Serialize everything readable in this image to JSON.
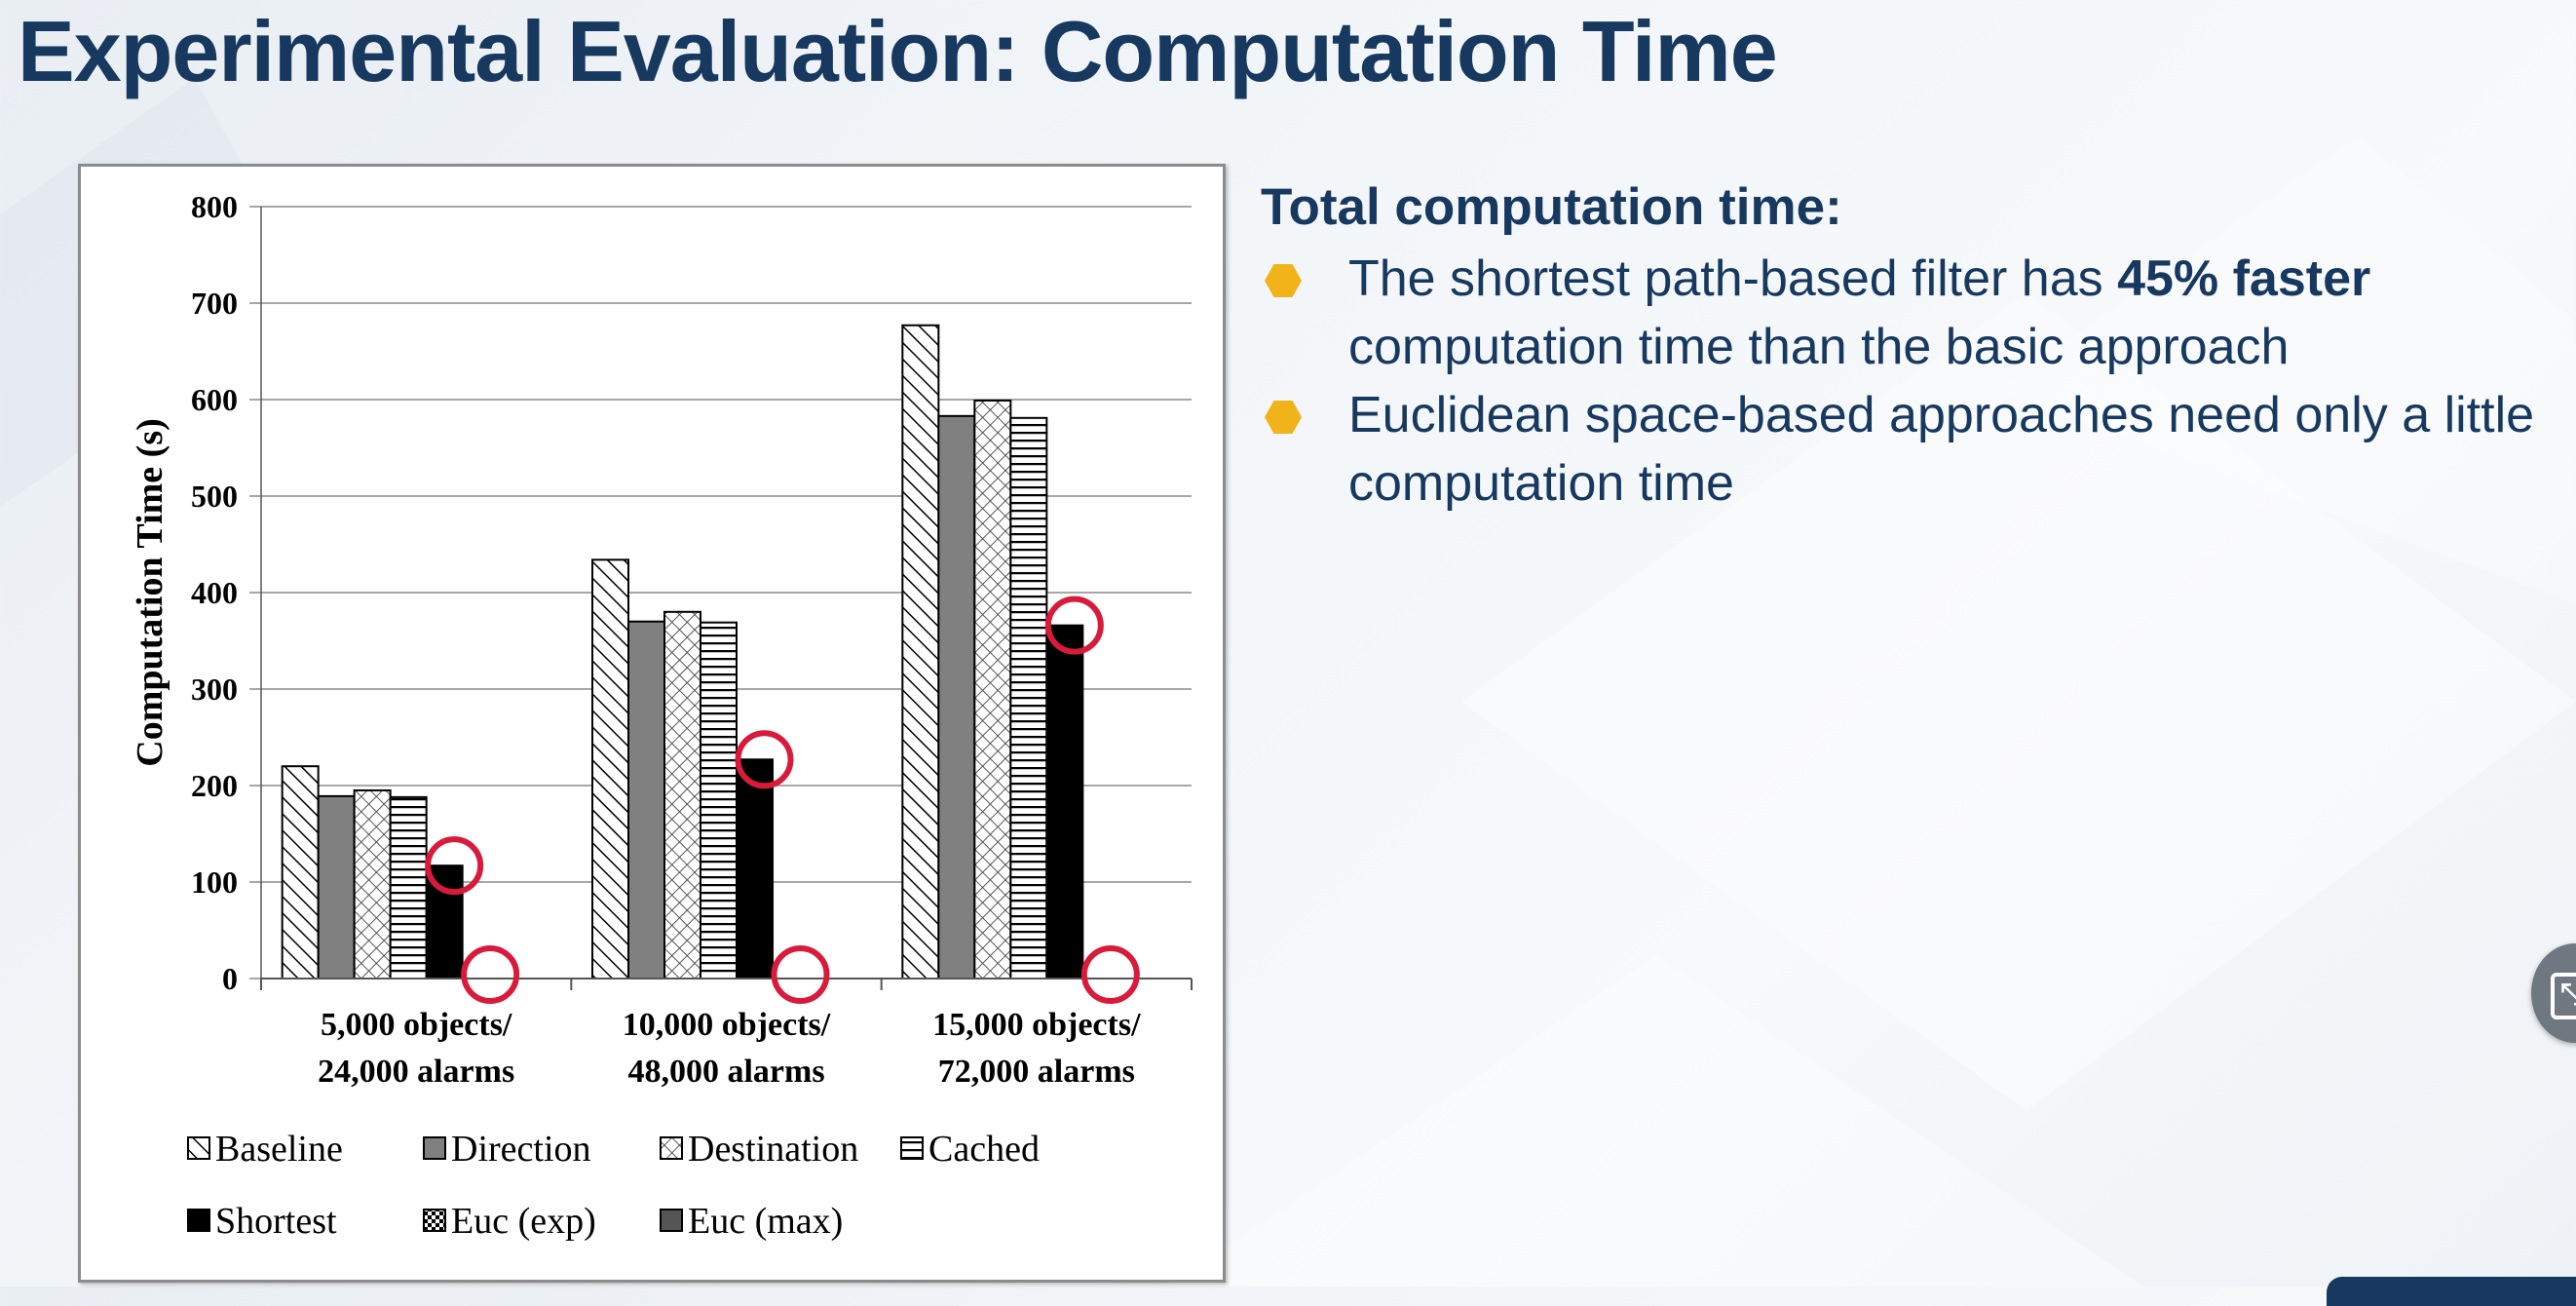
{
  "slide": {
    "title": "Experimental Evaluation: Computation Time"
  },
  "bullets": {
    "heading": "Total computation time:",
    "items": [
      {
        "prefix": "The shortest path-based filter has ",
        "emphasis": "45% faster",
        "suffix": " computation time than the basic approach"
      },
      {
        "prefix": "Euclidean space-based approaches need only a little computation time",
        "emphasis": "",
        "suffix": ""
      }
    ],
    "marker_color": "#f0b31a"
  },
  "controls": {
    "side_button_icon": "exit-fullscreen-icon"
  },
  "colors": {
    "title": "#17385f",
    "highlight_circle": "#d81b3b",
    "accent": "#f0b31a"
  },
  "chart_data": {
    "type": "bar",
    "ylabel": "Computation Time (s)",
    "xlabel": "",
    "ylim": [
      0,
      800
    ],
    "yticks": [
      0,
      100,
      200,
      300,
      400,
      500,
      600,
      700,
      800
    ],
    "grid": true,
    "legend_position": "bottom",
    "categories": [
      [
        "5,000 objects/",
        "24,000 alarms"
      ],
      [
        "10,000 objects/",
        "48,000 alarms"
      ],
      [
        "15,000 objects/",
        "72,000 alarms"
      ]
    ],
    "series": [
      {
        "name": "Baseline",
        "values": [
          220,
          434,
          677
        ],
        "pattern": "diagonal"
      },
      {
        "name": "Direction",
        "values": [
          189,
          370,
          583
        ],
        "pattern": "gray"
      },
      {
        "name": "Destination",
        "values": [
          195,
          380,
          599
        ],
        "pattern": "crosshatch"
      },
      {
        "name": "Cached",
        "values": [
          188,
          369,
          581
        ],
        "pattern": "horizontal"
      },
      {
        "name": "Shortest",
        "values": [
          117,
          227,
          366
        ],
        "pattern": "black"
      },
      {
        "name": "Euc (exp)",
        "values": [
          0,
          0,
          0
        ],
        "pattern": "checker"
      },
      {
        "name": "Euc (max)",
        "values": [
          0,
          0,
          0
        ],
        "pattern": "darkgray"
      }
    ],
    "highlighted": [
      {
        "series": "Shortest",
        "categories": [
          0,
          1,
          2
        ]
      },
      {
        "series": "Euc (exp)",
        "categories": [
          0,
          1,
          2
        ]
      }
    ]
  }
}
